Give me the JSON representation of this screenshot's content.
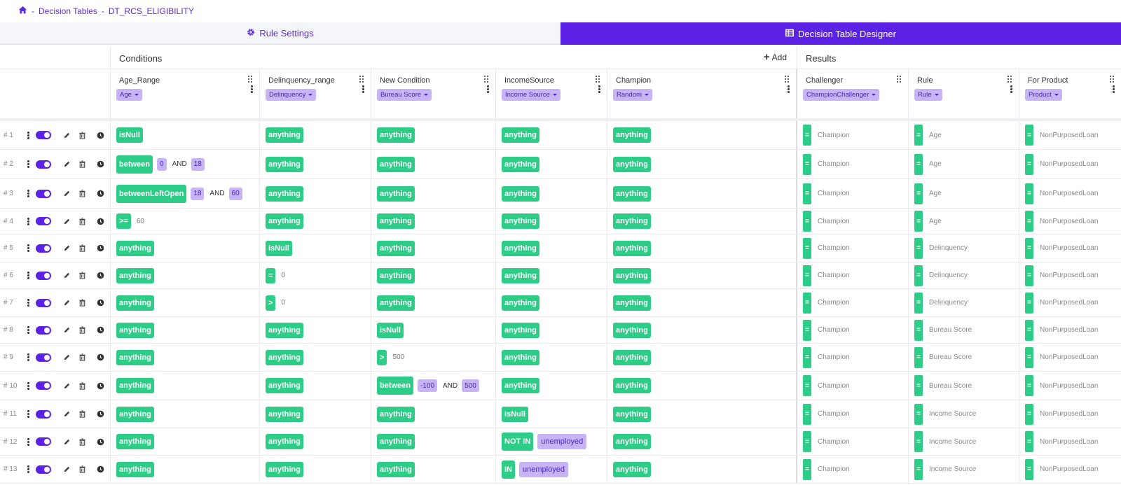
{
  "breadcrumb": {
    "items": [
      "Decision Tables",
      "DT_RCS_ELIGIBILITY"
    ],
    "sep": "-"
  },
  "tabs": {
    "rule_settings": "Rule Settings",
    "designer": "Decision Table Designer"
  },
  "sections": {
    "conditions": "Conditions",
    "add": "Add",
    "results": "Results"
  },
  "columns": [
    {
      "name": "Age_Range",
      "tag": "Age"
    },
    {
      "name": "Delinquency_range",
      "tag": "Delinquency"
    },
    {
      "name": "New Condition",
      "tag": "Bureau Score"
    },
    {
      "name": "IncomeSource",
      "tag": "Income Source"
    },
    {
      "name": "Champion",
      "tag": "Random"
    },
    {
      "name": "Challenger",
      "tag": "ChampionChallenger"
    },
    {
      "name": "Rule",
      "tag": "Rule"
    },
    {
      "name": "For Product",
      "tag": "Product"
    }
  ],
  "rows": [
    {
      "num": "# 1",
      "age": {
        "op": "isNull"
      },
      "del": {
        "op": "anything"
      },
      "new": {
        "op": "anything"
      },
      "inc": {
        "op": "anything"
      },
      "cha": {
        "op": "anything"
      },
      "res": [
        "Champion",
        "Age",
        "NonPurposedLoan"
      ]
    },
    {
      "num": "# 2",
      "age": {
        "op": "between",
        "a": "0",
        "b": "18"
      },
      "del": {
        "op": "anything"
      },
      "new": {
        "op": "anything"
      },
      "inc": {
        "op": "anything"
      },
      "cha": {
        "op": "anything"
      },
      "res": [
        "Champion",
        "Age",
        "NonPurposedLoan"
      ]
    },
    {
      "num": "# 3",
      "age": {
        "op": "betweenLeftOpen",
        "a": "18",
        "b": "60"
      },
      "del": {
        "op": "anything"
      },
      "new": {
        "op": "anything"
      },
      "inc": {
        "op": "anything"
      },
      "cha": {
        "op": "anything"
      },
      "res": [
        "Champion",
        "Age",
        "NonPurposedLoan"
      ]
    },
    {
      "num": "# 4",
      "age": {
        "op": ">=",
        "plain": "60"
      },
      "del": {
        "op": "anything"
      },
      "new": {
        "op": "anything"
      },
      "inc": {
        "op": "anything"
      },
      "cha": {
        "op": "anything"
      },
      "res": [
        "Champion",
        "Age",
        "NonPurposedLoan"
      ]
    },
    {
      "num": "# 5",
      "age": {
        "op": "anything"
      },
      "del": {
        "op": "isNull"
      },
      "new": {
        "op": "anything"
      },
      "inc": {
        "op": "anything"
      },
      "cha": {
        "op": "anything"
      },
      "res": [
        "Champion",
        "Delinquency",
        "NonPurposedLoan"
      ]
    },
    {
      "num": "# 6",
      "age": {
        "op": "anything"
      },
      "del": {
        "op": "=",
        "plain": "0"
      },
      "new": {
        "op": "anything"
      },
      "inc": {
        "op": "anything"
      },
      "cha": {
        "op": "anything"
      },
      "res": [
        "Champion",
        "Delinquency",
        "NonPurposedLoan"
      ]
    },
    {
      "num": "# 7",
      "age": {
        "op": "anything"
      },
      "del": {
        "op": ">",
        "plain": "0"
      },
      "new": {
        "op": "anything"
      },
      "inc": {
        "op": "anything"
      },
      "cha": {
        "op": "anything"
      },
      "res": [
        "Champion",
        "Delinquency",
        "NonPurposedLoan"
      ]
    },
    {
      "num": "# 8",
      "age": {
        "op": "anything"
      },
      "del": {
        "op": "anything"
      },
      "new": {
        "op": "isNull"
      },
      "inc": {
        "op": "anything"
      },
      "cha": {
        "op": "anything"
      },
      "res": [
        "Champion",
        "Bureau Score",
        "NonPurposedLoan"
      ]
    },
    {
      "num": "# 9",
      "age": {
        "op": "anything"
      },
      "del": {
        "op": "anything"
      },
      "new": {
        "op": ">",
        "plain": "500"
      },
      "inc": {
        "op": "anything"
      },
      "cha": {
        "op": "anything"
      },
      "res": [
        "Champion",
        "Bureau Score",
        "NonPurposedLoan"
      ]
    },
    {
      "num": "# 10",
      "age": {
        "op": "anything"
      },
      "del": {
        "op": "anything"
      },
      "new": {
        "op": "between",
        "a": "-100",
        "b": "500"
      },
      "inc": {
        "op": "anything"
      },
      "cha": {
        "op": "anything"
      },
      "res": [
        "Champion",
        "Bureau Score",
        "NonPurposedLoan"
      ]
    },
    {
      "num": "# 11",
      "age": {
        "op": "anything"
      },
      "del": {
        "op": "anything"
      },
      "new": {
        "op": "anything"
      },
      "inc": {
        "op": "isNull"
      },
      "cha": {
        "op": "anything"
      },
      "res": [
        "Champion",
        "Income Source",
        "NonPurposedLoan"
      ]
    },
    {
      "num": "# 12",
      "age": {
        "op": "anything"
      },
      "del": {
        "op": "anything"
      },
      "new": {
        "op": "anything"
      },
      "inc": {
        "op": "NOT IN",
        "list": "unemployed"
      },
      "cha": {
        "op": "anything"
      },
      "res": [
        "Champion",
        "Income Source",
        "NonPurposedLoan"
      ]
    },
    {
      "num": "# 13",
      "age": {
        "op": "anything"
      },
      "del": {
        "op": "anything"
      },
      "new": {
        "op": "anything"
      },
      "inc": {
        "op": "IN",
        "list": "unemployed"
      },
      "cha": {
        "op": "anything"
      },
      "res": [
        "Champion",
        "Income Source",
        "NonPurposedLoan"
      ]
    }
  ],
  "and_label": "AND",
  "eq_label": "=",
  "colors": {
    "accent": "#5b22e6",
    "green": "#2dcc87",
    "tag_bg": "#c6b4f5",
    "tag_text": "#4a23c9"
  }
}
